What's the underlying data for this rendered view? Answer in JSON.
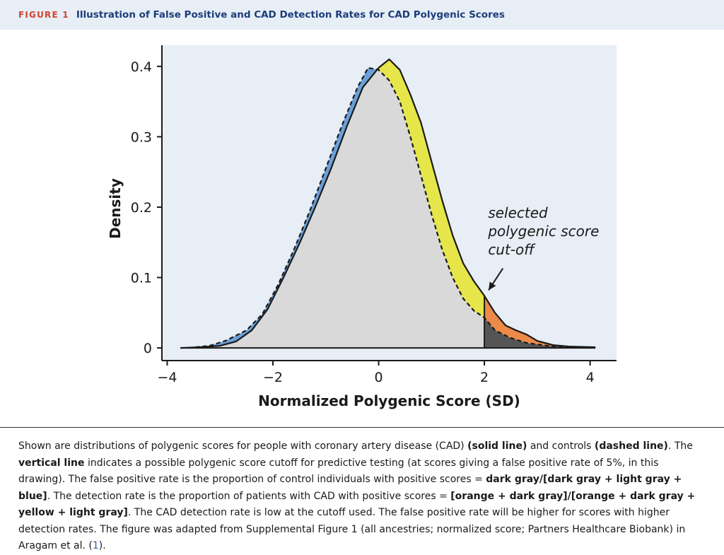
{
  "figure": {
    "label": "FIGURE 1",
    "title": "Illustration of False Positive and CAD Detection Rates for CAD Polygenic Scores"
  },
  "chart_data": {
    "type": "area",
    "xlabel": "Normalized Polygenic Score (SD)",
    "ylabel": "Density",
    "xlim": [
      -4.1,
      4.5
    ],
    "ylim": [
      -0.018,
      0.43
    ],
    "xticks": [
      "-4",
      "-2",
      "0",
      "2",
      "4"
    ],
    "yticks": [
      "0",
      "0.1",
      "0.2",
      "0.3",
      "0.4"
    ],
    "cutoff": 2,
    "annotation": [
      "selected",
      "polygenic score",
      "cut-off"
    ],
    "colors": {
      "light_gray": "#d9d9d9",
      "dark_gray": "#555555",
      "blue": "#6a9fd8",
      "yellow": "#e6e64a",
      "orange": "#ec8a48",
      "plot_bg": "#e7eef6"
    },
    "series": [
      {
        "name": "CAD",
        "style": "solid",
        "x": [
          -3.75,
          -3.4,
          -3.0,
          -2.7,
          -2.4,
          -2.1,
          -1.8,
          -1.5,
          -1.2,
          -0.9,
          -0.6,
          -0.3,
          0.0,
          0.2,
          0.4,
          0.6,
          0.8,
          1.0,
          1.2,
          1.4,
          1.6,
          1.8,
          2.0,
          2.2,
          2.4,
          2.6,
          2.8,
          3.0,
          3.3,
          3.6,
          4.1
        ],
        "y": [
          0.0,
          0.001,
          0.003,
          0.009,
          0.025,
          0.055,
          0.1,
          0.148,
          0.2,
          0.255,
          0.315,
          0.37,
          0.398,
          0.41,
          0.395,
          0.36,
          0.32,
          0.265,
          0.21,
          0.16,
          0.12,
          0.095,
          0.074,
          0.05,
          0.032,
          0.025,
          0.019,
          0.01,
          0.004,
          0.002,
          0.001
        ]
      },
      {
        "name": "Controls",
        "style": "dashed",
        "x": [
          -3.6,
          -3.2,
          -2.9,
          -2.5,
          -2.2,
          -1.9,
          -1.6,
          -1.3,
          -1.0,
          -0.7,
          -0.4,
          -0.2,
          0.0,
          0.2,
          0.4,
          0.6,
          0.8,
          1.0,
          1.2,
          1.4,
          1.6,
          1.8,
          2.0,
          2.2,
          2.5,
          2.8,
          3.2,
          3.6,
          4.1
        ],
        "y": [
          0.0,
          0.003,
          0.01,
          0.025,
          0.048,
          0.09,
          0.14,
          0.195,
          0.255,
          0.315,
          0.37,
          0.398,
          0.395,
          0.38,
          0.35,
          0.3,
          0.245,
          0.19,
          0.14,
          0.1,
          0.07,
          0.053,
          0.043,
          0.025,
          0.014,
          0.007,
          0.003,
          0.001,
          0.0
        ]
      }
    ]
  },
  "caption": {
    "p1": "Shown are distributions of polygenic scores for people with coronary artery disease (CAD) ",
    "b1": "(solid line)",
    "p2": " and controls ",
    "b2": "(dashed line)",
    "p3": ". The ",
    "b3": "vertical line",
    "p4": " indicates a possible polygenic score cutoff for predictive testing (at scores giving a false positive rate of 5%, in this drawing). The false positive rate is the proportion of control individuals with positive scores = ",
    "b4": "dark gray/[dark gray + light gray + blue]",
    "p5": ". The detection rate is the proportion of patients with CAD with positive scores = ",
    "b5": "[orange + dark gray]/[orange + dark gray + yellow + light gray]",
    "p6": ". The CAD detection rate is low at the cutoff used. The false positive rate will be higher for scores with higher detection rates. The figure was adapted from Supplemental Figure 1 (all ancestries; normalized score; Partners Healthcare Biobank) in Aragam et al. (",
    "ref": "1",
    "p7": ")."
  }
}
